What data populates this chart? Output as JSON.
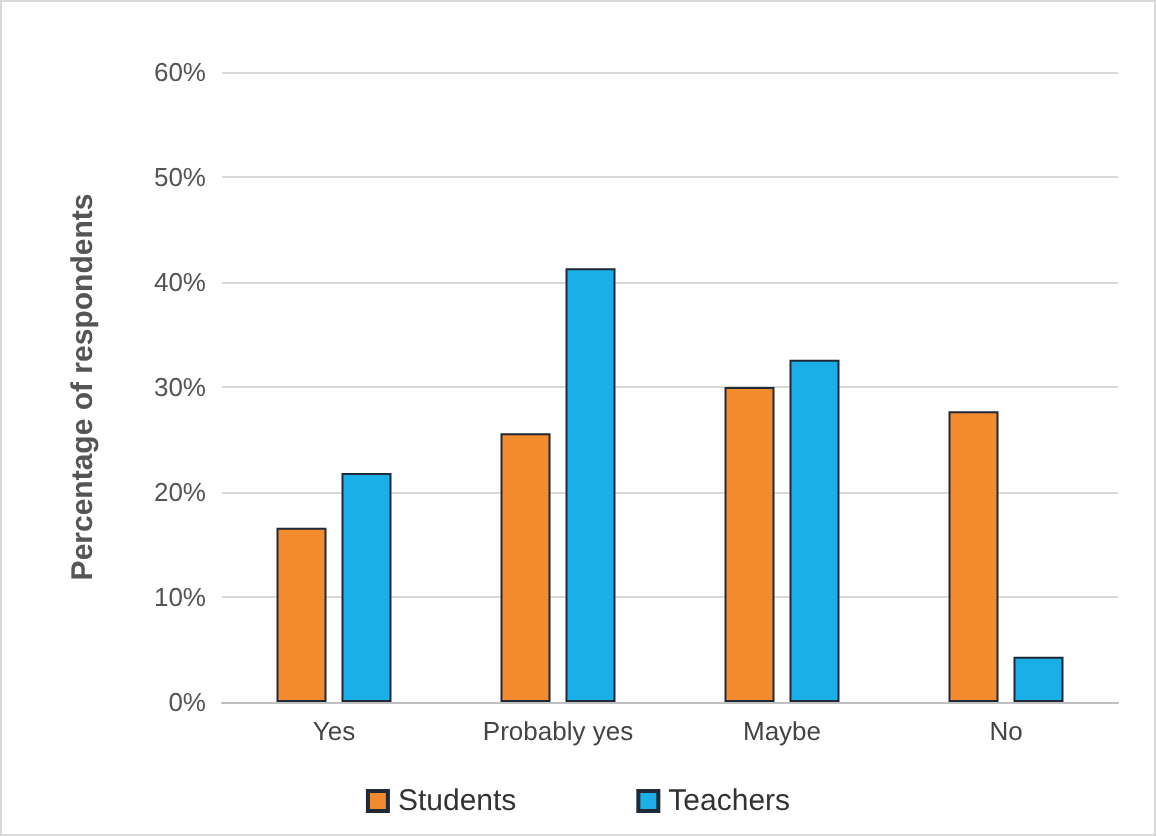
{
  "chart_data": {
    "type": "bar",
    "ylabel": "Percentage of respondents",
    "categories": [
      "Yes",
      "Probably yes",
      "Maybe",
      "No"
    ],
    "series": [
      {
        "name": "Students",
        "color": "#f28a2e",
        "values": [
          16.6,
          25.6,
          30.0,
          27.7
        ]
      },
      {
        "name": "Teachers",
        "color": "#1aafe6",
        "values": [
          21.8,
          41.3,
          32.6,
          4.3
        ]
      }
    ],
    "ylim": [
      0,
      60
    ],
    "yticks": [
      {
        "value": 0,
        "label": "0%"
      },
      {
        "value": 10,
        "label": "10%"
      },
      {
        "value": 20,
        "label": "20%"
      },
      {
        "value": 30,
        "label": "30%"
      },
      {
        "value": 40,
        "label": "40%"
      },
      {
        "value": 50,
        "label": "50%"
      },
      {
        "value": 60,
        "label": "60%"
      }
    ],
    "grid": "y",
    "legend": "bottom"
  }
}
